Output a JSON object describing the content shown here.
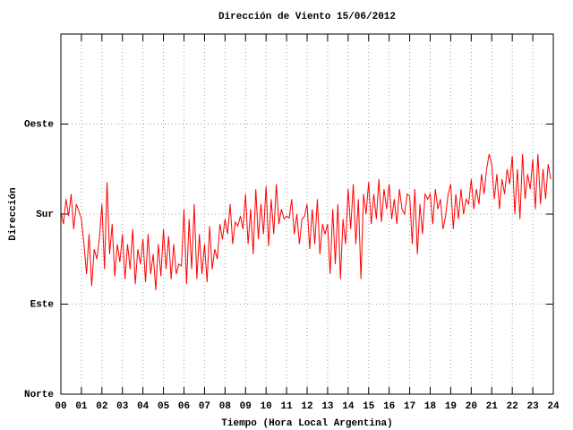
{
  "chart_data": {
    "type": "line",
    "title": "Dirección de Viento 15/06/2012",
    "x_label": "Tiempo (Hora Local Argentina)",
    "y_label": "Dirección",
    "color": "#ff0000",
    "grid": true,
    "xlim": [
      0,
      24
    ],
    "ylim": [
      0,
      360
    ],
    "xticks": [
      {
        "value": 0,
        "label": "00"
      },
      {
        "value": 1,
        "label": "01"
      },
      {
        "value": 2,
        "label": "02"
      },
      {
        "value": 3,
        "label": "03"
      },
      {
        "value": 4,
        "label": "04"
      },
      {
        "value": 5,
        "label": "05"
      },
      {
        "value": 6,
        "label": "06"
      },
      {
        "value": 7,
        "label": "07"
      },
      {
        "value": 8,
        "label": "08"
      },
      {
        "value": 9,
        "label": "09"
      },
      10,
      11,
      12,
      13,
      14,
      15,
      16,
      17,
      18,
      19,
      20,
      21,
      22,
      23,
      24
    ],
    "yticks": [
      {
        "value": 0,
        "label": "Norte"
      },
      {
        "value": 90,
        "label": "Este"
      },
      {
        "value": 180,
        "label": "Sur"
      },
      {
        "value": 270,
        "label": "Oeste"
      }
    ],
    "x": [
      0,
      0.125,
      0.25,
      0.375,
      0.5,
      0.625,
      0.75,
      0.875,
      1,
      1.125,
      1.25,
      1.375,
      1.5,
      1.625,
      1.75,
      1.875,
      2,
      2.125,
      2.25,
      2.375,
      2.5,
      2.625,
      2.75,
      2.875,
      3,
      3.125,
      3.25,
      3.375,
      3.5,
      3.625,
      3.75,
      3.875,
      4,
      4.125,
      4.25,
      4.375,
      4.5,
      4.625,
      4.75,
      4.875,
      5,
      5.125,
      5.25,
      5.375,
      5.5,
      5.625,
      5.75,
      5.875,
      6,
      6.125,
      6.25,
      6.375,
      6.5,
      6.625,
      6.75,
      6.875,
      7,
      7.125,
      7.25,
      7.375,
      7.5,
      7.625,
      7.75,
      7.875,
      8,
      8.125,
      8.25,
      8.375,
      8.5,
      8.625,
      8.75,
      8.875,
      9,
      9.125,
      9.25,
      9.375,
      9.5,
      9.625,
      9.75,
      9.875,
      10,
      10.125,
      10.25,
      10.375,
      10.5,
      10.625,
      10.75,
      10.875,
      11,
      11.125,
      11.25,
      11.375,
      11.5,
      11.625,
      11.75,
      11.875,
      12,
      12.125,
      12.25,
      12.375,
      12.5,
      12.625,
      12.75,
      12.875,
      13,
      13.125,
      13.25,
      13.375,
      13.5,
      13.625,
      13.75,
      13.875,
      14,
      14.125,
      14.25,
      14.375,
      14.5,
      14.625,
      14.75,
      14.875,
      15,
      15.125,
      15.25,
      15.375,
      15.5,
      15.625,
      15.75,
      15.875,
      16,
      16.125,
      16.25,
      16.375,
      16.5,
      16.625,
      16.75,
      16.875,
      17,
      17.125,
      17.25,
      17.375,
      17.5,
      17.625,
      17.75,
      17.875,
      18,
      18.125,
      18.25,
      18.375,
      18.5,
      18.625,
      18.75,
      18.875,
      19,
      19.125,
      19.25,
      19.375,
      19.5,
      19.625,
      19.75,
      19.875,
      20,
      20.125,
      20.25,
      20.375,
      20.5,
      20.625,
      20.75,
      20.875,
      21,
      21.125,
      21.25,
      21.375,
      21.5,
      21.625,
      21.75,
      21.875,
      22,
      22.125,
      22.25,
      22.375,
      22.5,
      22.625,
      22.75,
      22.875,
      23,
      23.125,
      23.25,
      23.375,
      23.5,
      23.625,
      23.75,
      23.875
    ],
    "values": [
      182,
      170,
      195,
      178,
      200,
      165,
      190,
      183,
      175,
      150,
      120,
      160,
      108,
      145,
      135,
      155,
      190,
      125,
      212,
      140,
      170,
      118,
      150,
      132,
      160,
      115,
      150,
      125,
      165,
      110,
      145,
      130,
      155,
      112,
      160,
      120,
      140,
      104,
      150,
      118,
      165,
      125,
      158,
      115,
      150,
      120,
      130,
      128,
      185,
      110,
      175,
      125,
      190,
      115,
      160,
      120,
      150,
      112,
      168,
      125,
      145,
      135,
      170,
      155,
      175,
      160,
      190,
      150,
      172,
      168,
      178,
      165,
      200,
      150,
      185,
      140,
      205,
      155,
      190,
      160,
      208,
      148,
      195,
      160,
      210,
      170,
      185,
      175,
      178,
      176,
      195,
      160,
      180,
      150,
      175,
      178,
      190,
      145,
      185,
      150,
      195,
      140,
      170,
      160,
      170,
      120,
      185,
      130,
      190,
      115,
      175,
      150,
      205,
      165,
      210,
      150,
      195,
      115,
      200,
      180,
      212,
      170,
      200,
      175,
      215,
      172,
      205,
      185,
      210,
      175,
      195,
      170,
      205,
      185,
      180,
      200,
      198,
      150,
      205,
      140,
      190,
      160,
      200,
      195,
      200,
      170,
      205,
      185,
      195,
      165,
      178,
      200,
      210,
      165,
      200,
      175,
      205,
      180,
      195,
      190,
      215,
      185,
      205,
      190,
      220,
      200,
      225,
      240,
      230,
      195,
      220,
      185,
      215,
      200,
      225,
      210,
      238,
      180,
      225,
      175,
      240,
      195,
      220,
      205,
      235,
      185,
      240,
      190,
      225,
      195,
      230,
      215
    ]
  }
}
